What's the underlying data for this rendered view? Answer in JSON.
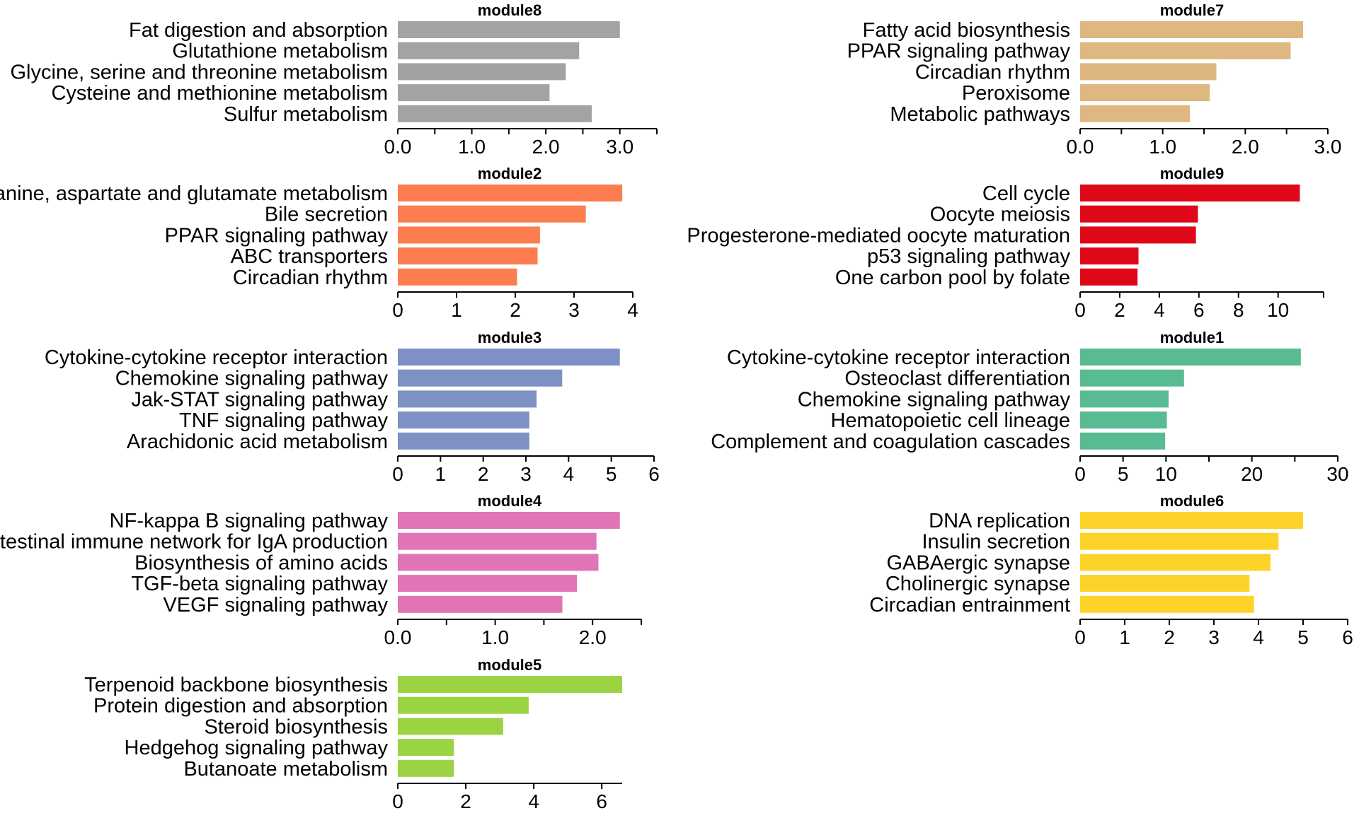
{
  "chart_data": [
    {
      "type": "bar",
      "orientation": "horizontal",
      "title": "module8",
      "color": "#a3a3a3",
      "categories": [
        "Fat digestion and absorption",
        "Glutathione metabolism",
        "Glycine, serine and threonine metabolism",
        "Cysteine and methionine metabolism",
        "Sulfur metabolism"
      ],
      "values": [
        3.0,
        2.45,
        2.27,
        2.05,
        2.62
      ],
      "xlim": [
        0,
        3.5
      ],
      "major_ticks": [
        0,
        1,
        2,
        3
      ],
      "tick_labels": [
        "0.0",
        "1.0",
        "2.0",
        "3.0"
      ],
      "minor_ticks": [
        0.5,
        1.5,
        2.5,
        3.5
      ]
    },
    {
      "type": "bar",
      "orientation": "horizontal",
      "title": "module7",
      "color": "#dfb781",
      "categories": [
        "Fatty acid biosynthesis",
        "PPAR signaling pathway",
        "Circadian rhythm",
        "Peroxisome",
        "Metabolic pathways"
      ],
      "values": [
        2.7,
        2.55,
        1.65,
        1.57,
        1.33
      ],
      "xlim": [
        0,
        3.0
      ],
      "major_ticks": [
        0,
        1,
        2,
        3
      ],
      "tick_labels": [
        "0.0",
        "1.0",
        "2.0",
        "3.0"
      ],
      "minor_ticks": [
        0.5,
        1.5,
        2.5
      ]
    },
    {
      "type": "bar",
      "orientation": "horizontal",
      "title": "module2",
      "color": "#fb7d50",
      "categories": [
        "Alanine, aspartate and glutamate metabolism",
        "Bile secretion",
        "PPAR signaling pathway",
        "ABC transporters",
        "Circadian rhythm"
      ],
      "values": [
        3.82,
        3.2,
        2.42,
        2.38,
        2.03
      ],
      "xlim": [
        0,
        4
      ],
      "major_ticks": [
        0,
        1,
        2,
        3,
        4
      ],
      "tick_labels": [
        "0",
        "1",
        "2",
        "3",
        "4"
      ],
      "minor_ticks": []
    },
    {
      "type": "bar",
      "orientation": "horizontal",
      "title": "module9",
      "color": "#de0818",
      "categories": [
        "Cell cycle",
        "Oocyte meiosis",
        "Progesterone-mediated oocyte maturation",
        "p53 signaling pathway",
        "One carbon pool by folate"
      ],
      "values": [
        11.1,
        5.95,
        5.85,
        2.95,
        2.9
      ],
      "xlim": [
        0,
        12.3
      ],
      "major_ticks": [
        0,
        2,
        4,
        6,
        8,
        10
      ],
      "tick_labels": [
        "0",
        "2",
        "4",
        "6",
        "8",
        "10"
      ],
      "minor_ticks": [
        12.3
      ]
    },
    {
      "type": "bar",
      "orientation": "horizontal",
      "title": "module3",
      "color": "#7e90c4",
      "categories": [
        "Cytokine-cytokine receptor interaction",
        "Chemokine signaling pathway",
        "Jak-STAT signaling pathway",
        "TNF signaling pathway",
        "Arachidonic acid metabolism"
      ],
      "values": [
        5.2,
        3.85,
        3.25,
        3.08,
        3.08
      ],
      "xlim": [
        0,
        6
      ],
      "major_ticks": [
        0,
        1,
        2,
        3,
        4,
        5,
        6
      ],
      "tick_labels": [
        "0",
        "1",
        "2",
        "3",
        "4",
        "5",
        "6"
      ],
      "minor_ticks": []
    },
    {
      "type": "bar",
      "orientation": "horizontal",
      "title": "module1",
      "color": "#58bb92",
      "categories": [
        "Cytokine-cytokine receptor interaction",
        "Osteoclast differentiation",
        "Chemokine signaling pathway",
        "Hematopoietic cell lineage",
        "Complement and coagulation cascades"
      ],
      "values": [
        25.7,
        12.1,
        10.3,
        10.1,
        9.9
      ],
      "xlim": [
        0,
        30
      ],
      "major_ticks": [
        0,
        5,
        10,
        20,
        30
      ],
      "tick_labels": [
        "0",
        "5",
        "10",
        "20",
        "30"
      ],
      "minor_ticks": [
        15,
        25
      ]
    },
    {
      "type": "bar",
      "orientation": "horizontal",
      "title": "module4",
      "color": "#e174b7",
      "categories": [
        "NF-kappa B signaling pathway",
        "Intestinal immune network for IgA production",
        "Biosynthesis of amino acids",
        "TGF-beta signaling pathway",
        "VEGF signaling pathway"
      ],
      "values": [
        2.28,
        2.04,
        2.06,
        1.84,
        1.69
      ],
      "xlim": [
        0,
        2.5
      ],
      "major_ticks": [
        0,
        1,
        2
      ],
      "tick_labels": [
        "0.0",
        "1.0",
        "2.0"
      ],
      "minor_ticks": [
        0.5,
        1.5,
        2.5
      ]
    },
    {
      "type": "bar",
      "orientation": "horizontal",
      "title": "module6",
      "color": "#fdd32a",
      "categories": [
        "DNA replication",
        "Insulin secretion",
        "GABAergic synapse",
        "Cholinergic synapse",
        "Circadian entrainment"
      ],
      "values": [
        5.0,
        4.45,
        4.27,
        3.8,
        3.9
      ],
      "xlim": [
        0,
        6
      ],
      "major_ticks": [
        0,
        1,
        2,
        3,
        4,
        5,
        6
      ],
      "tick_labels": [
        "0",
        "1",
        "2",
        "3",
        "4",
        "5",
        "6"
      ],
      "minor_ticks": []
    },
    {
      "type": "bar",
      "orientation": "horizontal",
      "title": "module5",
      "color": "#9ad443",
      "categories": [
        "Terpenoid backbone biosynthesis",
        "Protein digestion and absorption",
        "Steroid biosynthesis",
        "Hedgehog signaling pathway",
        "Butanoate metabolism"
      ],
      "values": [
        6.6,
        3.85,
        3.1,
        1.65,
        1.65
      ],
      "xlim": [
        0,
        6.6
      ],
      "major_ticks": [
        0,
        2,
        4,
        6
      ],
      "tick_labels": [
        "0",
        "2",
        "4",
        "6"
      ],
      "minor_ticks": []
    }
  ]
}
